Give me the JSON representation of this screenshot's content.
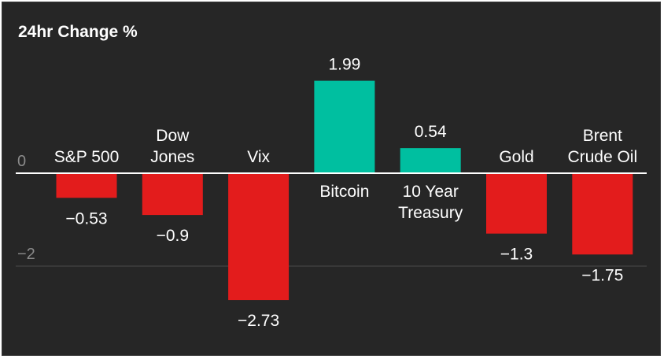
{
  "chart_data": {
    "type": "bar",
    "title": "24hr Change %",
    "categories": [
      [
        "S&P 500"
      ],
      [
        "Dow",
        "Jones"
      ],
      [
        "Vix"
      ],
      [
        "Bitcoin"
      ],
      [
        "10 Year",
        "Treasury"
      ],
      [
        "Gold"
      ],
      [
        "Brent",
        "Crude Oil"
      ]
    ],
    "values": [
      -0.53,
      -0.9,
      -2.73,
      1.99,
      0.54,
      -1.3,
      -1.75
    ],
    "value_labels": [
      "−0.53",
      "−0.9",
      "−2.73",
      "1.99",
      "0.54",
      "−1.3",
      "−1.75"
    ],
    "y_ticks": [
      0,
      -2
    ],
    "y_tick_labels": [
      "0",
      "−2"
    ],
    "ylim": [
      -3.0,
      2.4
    ],
    "grid": true,
    "colors": {
      "positive": "#00bfa0",
      "negative": "#e31c1c",
      "background": "#262626",
      "zero_line": "#ffffff",
      "gridline": "#4a4a4a"
    }
  }
}
